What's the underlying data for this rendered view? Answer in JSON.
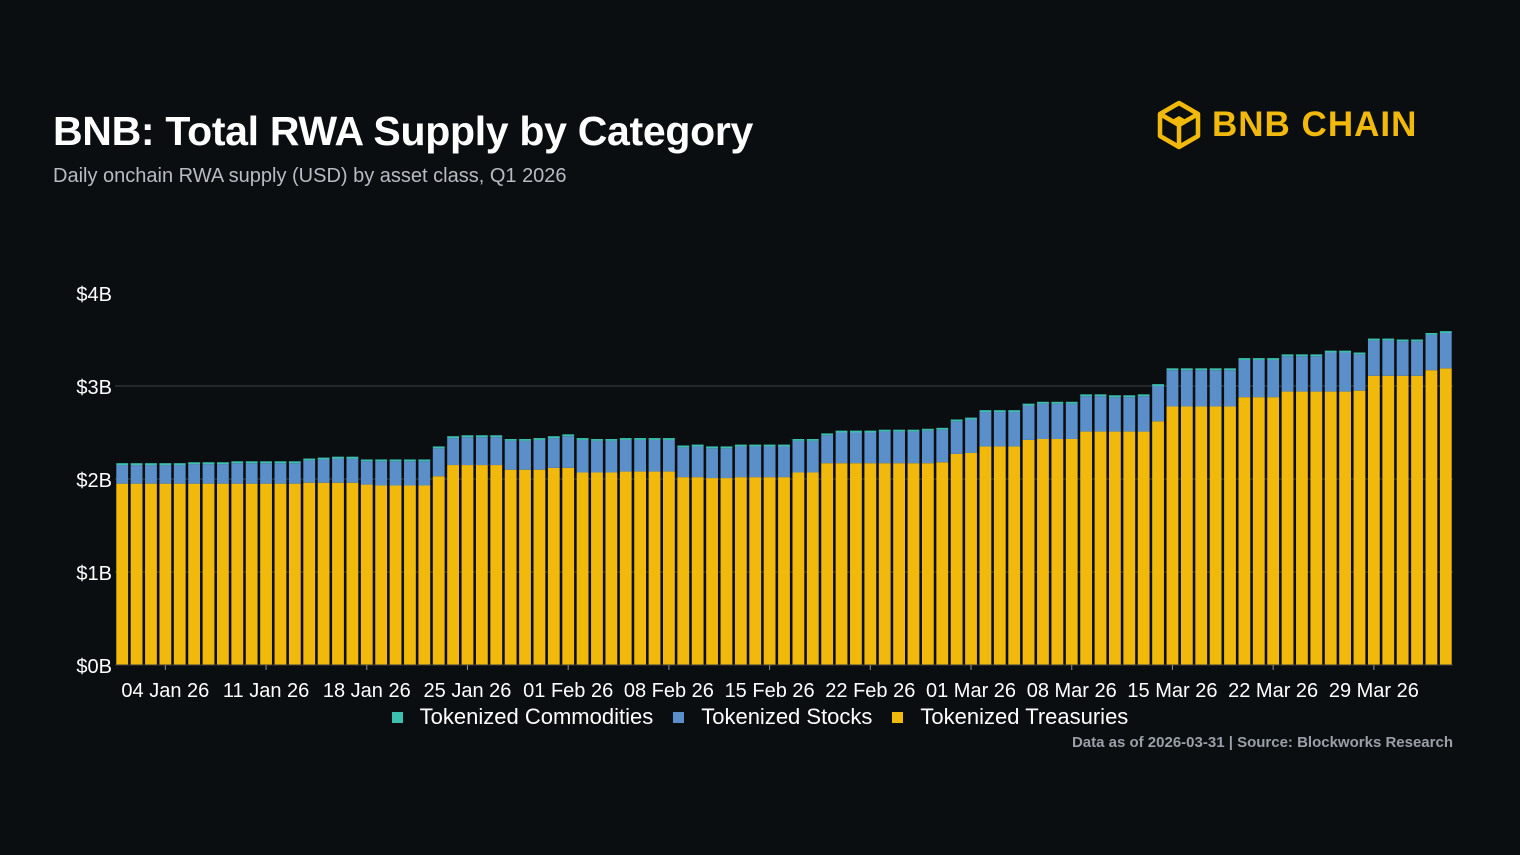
{
  "header": {
    "title": "BNB: Total RWA Supply by Category",
    "subtitle": "Daily onchain RWA supply (USD) by asset class, Q1 2026"
  },
  "logo": {
    "text": "BNB CHAIN",
    "color": "#f0b90b"
  },
  "footer": {
    "source": "Data as of 2026-03-31 | Source: Blockworks Research"
  },
  "legend": {
    "position": "bottom",
    "items": [
      {
        "label": "Tokenized Commodities",
        "color": "#3cc0b0"
      },
      {
        "label": "Tokenized Stocks",
        "color": "#5b8fc9"
      },
      {
        "label": "Tokenized Treasuries",
        "color": "#f0b90b"
      }
    ]
  },
  "chart_data": {
    "type": "bar",
    "stacked": true,
    "y_unit": "billion USD",
    "ylim": [
      0,
      4
    ],
    "yticks": [
      0,
      1,
      2,
      3,
      4
    ],
    "ytick_labels": [
      "$0B",
      "$1B",
      "$2B",
      "$3B",
      "$4B"
    ],
    "grid": "horizontal",
    "x_start": "2026-01-01",
    "x_ticks": [
      {
        "date": "2026-01-04",
        "label": "04 Jan 26"
      },
      {
        "date": "2026-01-11",
        "label": "11 Jan 26"
      },
      {
        "date": "2026-01-18",
        "label": "18 Jan 26"
      },
      {
        "date": "2026-01-25",
        "label": "25 Jan 26"
      },
      {
        "date": "2026-02-01",
        "label": "01 Feb 26"
      },
      {
        "date": "2026-02-08",
        "label": "08 Feb 26"
      },
      {
        "date": "2026-02-15",
        "label": "15 Feb 26"
      },
      {
        "date": "2026-02-22",
        "label": "22 Feb 26"
      },
      {
        "date": "2026-03-01",
        "label": "01 Mar 26"
      },
      {
        "date": "2026-03-08",
        "label": "08 Mar 26"
      },
      {
        "date": "2026-03-15",
        "label": "15 Mar 26"
      },
      {
        "date": "2026-03-22",
        "label": "22 Mar 26"
      },
      {
        "date": "2026-03-29",
        "label": "29 Mar 26"
      }
    ],
    "series": [
      {
        "name": "Tokenized Treasuries",
        "color": "#f0b90b",
        "values": [
          1.95,
          1.95,
          1.95,
          1.95,
          1.95,
          1.95,
          1.95,
          1.95,
          1.95,
          1.95,
          1.95,
          1.95,
          1.95,
          1.96,
          1.96,
          1.96,
          1.96,
          1.94,
          1.93,
          1.93,
          1.93,
          1.93,
          2.03,
          2.15,
          2.15,
          2.15,
          2.15,
          2.1,
          2.1,
          2.1,
          2.12,
          2.12,
          2.07,
          2.07,
          2.07,
          2.08,
          2.08,
          2.08,
          2.08,
          2.02,
          2.02,
          2.01,
          2.01,
          2.02,
          2.02,
          2.02,
          2.02,
          2.07,
          2.07,
          2.17,
          2.17,
          2.17,
          2.17,
          2.17,
          2.17,
          2.17,
          2.17,
          2.18,
          2.27,
          2.28,
          2.35,
          2.35,
          2.35,
          2.42,
          2.43,
          2.43,
          2.43,
          2.51,
          2.51,
          2.51,
          2.51,
          2.51,
          2.62,
          2.78,
          2.78,
          2.78,
          2.78,
          2.78,
          2.88,
          2.88,
          2.88,
          2.94,
          2.94,
          2.94,
          2.94,
          2.94,
          2.95,
          3.11,
          3.11,
          3.11,
          3.11,
          3.17,
          3.19
        ]
      },
      {
        "name": "Tokenized Stocks",
        "color": "#5b8fc9",
        "values": [
          0.2,
          0.2,
          0.2,
          0.2,
          0.2,
          0.21,
          0.21,
          0.21,
          0.22,
          0.22,
          0.22,
          0.22,
          0.22,
          0.24,
          0.25,
          0.26,
          0.26,
          0.25,
          0.26,
          0.26,
          0.26,
          0.26,
          0.3,
          0.29,
          0.3,
          0.3,
          0.3,
          0.31,
          0.31,
          0.32,
          0.32,
          0.34,
          0.35,
          0.34,
          0.34,
          0.34,
          0.34,
          0.34,
          0.34,
          0.32,
          0.33,
          0.32,
          0.32,
          0.33,
          0.33,
          0.33,
          0.33,
          0.34,
          0.34,
          0.3,
          0.33,
          0.33,
          0.33,
          0.34,
          0.34,
          0.34,
          0.35,
          0.35,
          0.35,
          0.36,
          0.37,
          0.37,
          0.37,
          0.37,
          0.38,
          0.38,
          0.38,
          0.38,
          0.38,
          0.37,
          0.37,
          0.38,
          0.38,
          0.39,
          0.39,
          0.39,
          0.39,
          0.39,
          0.4,
          0.4,
          0.4,
          0.38,
          0.38,
          0.38,
          0.42,
          0.42,
          0.39,
          0.38,
          0.38,
          0.37,
          0.37,
          0.38,
          0.38
        ]
      },
      {
        "name": "Tokenized Commodities",
        "color": "#3cc0b0",
        "values": [
          0.02,
          0.02,
          0.02,
          0.02,
          0.02,
          0.02,
          0.02,
          0.02,
          0.02,
          0.02,
          0.02,
          0.02,
          0.02,
          0.02,
          0.02,
          0.02,
          0.02,
          0.02,
          0.02,
          0.02,
          0.02,
          0.02,
          0.02,
          0.02,
          0.02,
          0.02,
          0.02,
          0.02,
          0.02,
          0.02,
          0.02,
          0.02,
          0.02,
          0.02,
          0.02,
          0.02,
          0.02,
          0.02,
          0.02,
          0.02,
          0.02,
          0.02,
          0.02,
          0.02,
          0.02,
          0.02,
          0.02,
          0.02,
          0.02,
          0.02,
          0.02,
          0.02,
          0.02,
          0.02,
          0.02,
          0.02,
          0.02,
          0.02,
          0.02,
          0.02,
          0.02,
          0.02,
          0.02,
          0.02,
          0.02,
          0.02,
          0.02,
          0.02,
          0.02,
          0.02,
          0.02,
          0.02,
          0.02,
          0.02,
          0.02,
          0.02,
          0.02,
          0.02,
          0.02,
          0.02,
          0.02,
          0.02,
          0.02,
          0.02,
          0.02,
          0.02,
          0.02,
          0.02,
          0.02,
          0.02,
          0.02,
          0.02,
          0.02
        ]
      }
    ]
  }
}
